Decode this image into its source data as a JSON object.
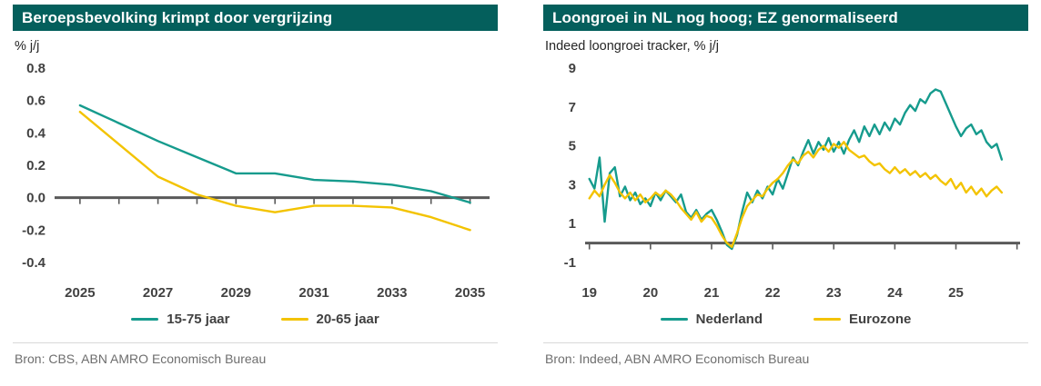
{
  "colors": {
    "header_bg": "#045f5c",
    "teal": "#169b8d",
    "yellow": "#f3c300",
    "axis": "#595959"
  },
  "panels": [
    {
      "source": "Bron: CBS, ABN AMRO Economisch Bureau"
    },
    {
      "source": "Bron: Indeed, ABN AMRO Economisch Bureau"
    }
  ],
  "chart_data": [
    {
      "type": "line",
      "title": "Beroepsbevolking krimpt door vergrijzing",
      "subtitle": "% j/j",
      "xlabel": "",
      "ylabel": "% j/j",
      "grid": false,
      "legend_position": "bottom",
      "xlim": [
        2024.35,
        2035.5
      ],
      "ylim": [
        -0.4,
        0.8
      ],
      "yticks": [
        -0.4,
        -0.2,
        0,
        0.2,
        0.4,
        0.6,
        0.8
      ],
      "ytick_labels": [
        "-0.4",
        "-0.2",
        "0.0",
        "0.2",
        "0.4",
        "0.6",
        "0.8"
      ],
      "xticks": [
        2025,
        2026,
        2027,
        2028,
        2029,
        2030,
        2031,
        2032,
        2033,
        2034,
        2035
      ],
      "xtick_labels": [
        {
          "x": 2025,
          "label": "2025"
        },
        {
          "x": 2027,
          "label": "2027"
        },
        {
          "x": 2029,
          "label": "2029"
        },
        {
          "x": 2031,
          "label": "2031"
        },
        {
          "x": 2033,
          "label": "2033"
        },
        {
          "x": 2035,
          "label": "2035"
        }
      ],
      "x": [
        2025,
        2026,
        2027,
        2028,
        2029,
        2030,
        2031,
        2032,
        2033,
        2034,
        2035
      ],
      "series": [
        {
          "name": "15-75 jaar",
          "color": "#169b8d",
          "values": [
            0.57,
            0.46,
            0.35,
            0.25,
            0.15,
            0.15,
            0.11,
            0.1,
            0.08,
            0.04,
            -0.03
          ]
        },
        {
          "name": "20-65 jaar",
          "color": "#f3c300",
          "values": [
            0.53,
            0.33,
            0.13,
            0.02,
            -0.05,
            -0.09,
            -0.05,
            -0.05,
            -0.06,
            -0.12,
            -0.2
          ]
        }
      ]
    },
    {
      "type": "line",
      "title": "Loongroei in NL nog hoog; EZ genormaliseerd",
      "subtitle": "Indeed loongroei tracker, % j/j",
      "xlabel": "",
      "ylabel": "% j/j",
      "grid": false,
      "legend_position": "bottom",
      "xlim": [
        2018.93,
        2026.05
      ],
      "ylim": [
        -1,
        9
      ],
      "yticks": [
        -1,
        1,
        3,
        5,
        7,
        9
      ],
      "ytick_labels": [
        "-1",
        "1",
        "3",
        "5",
        "7",
        "9"
      ],
      "xticks": [
        2019,
        2020,
        2021,
        2022,
        2023,
        2024,
        2025,
        2026
      ],
      "xtick_labels": [
        {
          "x": 2019,
          "label": "19"
        },
        {
          "x": 2020,
          "label": "20"
        },
        {
          "x": 2021,
          "label": "21"
        },
        {
          "x": 2022,
          "label": "22"
        },
        {
          "x": 2023,
          "label": "23"
        },
        {
          "x": 2024,
          "label": "24"
        },
        {
          "x": 2025,
          "label": "25"
        }
      ],
      "x_start": 2019,
      "x_interval": 0.0833333,
      "series": [
        {
          "name": "Nederland",
          "color": "#169b8d",
          "values": [
            3.3,
            2.8,
            4.4,
            1.1,
            3.6,
            3.9,
            2.4,
            2.9,
            2.2,
            2.6,
            2.0,
            2.3,
            1.9,
            2.6,
            2.2,
            2.7,
            2.4,
            2.1,
            2.5,
            1.6,
            1.3,
            1.7,
            1.2,
            1.5,
            1.7,
            1.2,
            0.6,
            -0.1,
            -0.3,
            0.4,
            1.6,
            2.6,
            2.1,
            2.7,
            2.3,
            2.9,
            2.5,
            3.3,
            2.8,
            3.6,
            4.4,
            4.0,
            4.7,
            5.3,
            4.6,
            5.2,
            4.8,
            5.4,
            4.7,
            5.2,
            4.6,
            5.3,
            5.8,
            5.2,
            6.0,
            5.5,
            6.1,
            5.6,
            6.2,
            5.8,
            6.4,
            6.1,
            6.7,
            7.1,
            6.8,
            7.4,
            7.2,
            7.7,
            7.9,
            7.8,
            7.2,
            6.6,
            6.0,
            5.5,
            5.9,
            6.1,
            5.6,
            5.8,
            5.2,
            4.9,
            5.1,
            4.3
          ]
        },
        {
          "name": "Eurozone",
          "color": "#f3c300",
          "values": [
            2.3,
            2.7,
            2.4,
            3.0,
            3.5,
            3.1,
            2.6,
            2.3,
            2.6,
            2.2,
            2.5,
            2.1,
            2.3,
            2.6,
            2.4,
            2.7,
            2.5,
            2.2,
            1.8,
            1.5,
            1.2,
            1.6,
            1.1,
            1.4,
            1.3,
            0.9,
            0.4,
            0.0,
            -0.2,
            0.5,
            1.3,
            1.9,
            2.2,
            2.5,
            2.4,
            2.8,
            3.1,
            3.3,
            3.6,
            4.0,
            4.3,
            4.1,
            4.5,
            4.7,
            4.4,
            4.8,
            5.0,
            4.7,
            5.1,
            4.9,
            5.2,
            4.8,
            4.6,
            4.4,
            4.5,
            4.2,
            4.0,
            4.1,
            3.8,
            3.6,
            3.9,
            3.6,
            3.8,
            3.5,
            3.7,
            3.4,
            3.6,
            3.3,
            3.5,
            3.2,
            3.0,
            3.3,
            2.8,
            3.1,
            2.6,
            2.9,
            2.5,
            2.8,
            2.4,
            2.7,
            2.9,
            2.6
          ]
        }
      ]
    }
  ]
}
